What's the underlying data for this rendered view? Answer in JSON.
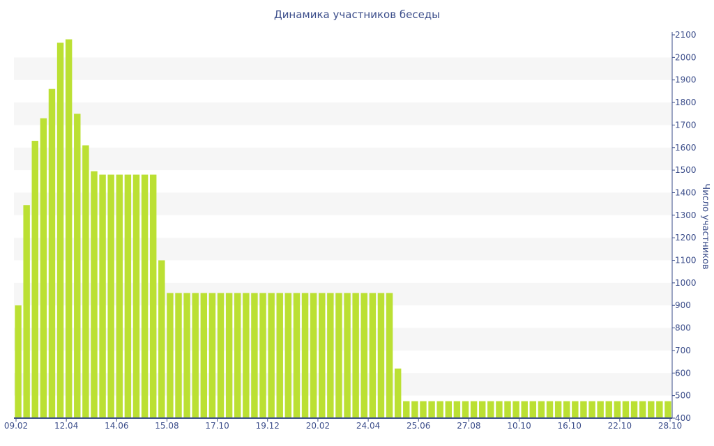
{
  "chart_data": {
    "type": "bar",
    "title": "Динамика участников беседы",
    "xlabel": "",
    "ylabel": "Число участников",
    "ylim": [
      400,
      2100
    ],
    "yticks": [
      400,
      500,
      600,
      700,
      800,
      900,
      1000,
      1100,
      1200,
      1300,
      1400,
      1500,
      1600,
      1700,
      1800,
      1900,
      2000,
      2100
    ],
    "xtick_labels": [
      "09.02",
      "12.04",
      "14.06",
      "15.08",
      "17.10",
      "19.12",
      "20.02",
      "24.04",
      "25.06",
      "27.08",
      "10.10",
      "16.10",
      "22.10",
      "28.10"
    ],
    "values": [
      900,
      1345,
      1630,
      1730,
      1860,
      2065,
      2080,
      1750,
      1610,
      1495,
      1480,
      1480,
      1480,
      1480,
      1480,
      1480,
      1480,
      1100,
      955,
      955,
      955,
      955,
      955,
      955,
      955,
      955,
      955,
      955,
      955,
      955,
      955,
      955,
      955,
      955,
      955,
      955,
      955,
      955,
      955,
      955,
      955,
      955,
      955,
      955,
      955,
      620,
      475,
      475,
      475,
      475,
      475,
      475,
      475,
      475,
      475,
      475,
      475,
      475,
      475,
      475,
      475,
      475,
      475,
      475,
      475,
      475,
      475,
      475,
      475,
      475,
      475,
      475,
      475,
      475,
      475,
      475,
      475,
      475
    ],
    "grid": "alternating horizontal bands",
    "y_axis_side": "right",
    "colors": {
      "bar": "#bbe033",
      "band": "#f6f6f6",
      "axis": "#3b4d8a",
      "text": "#3b4d8a"
    }
  }
}
